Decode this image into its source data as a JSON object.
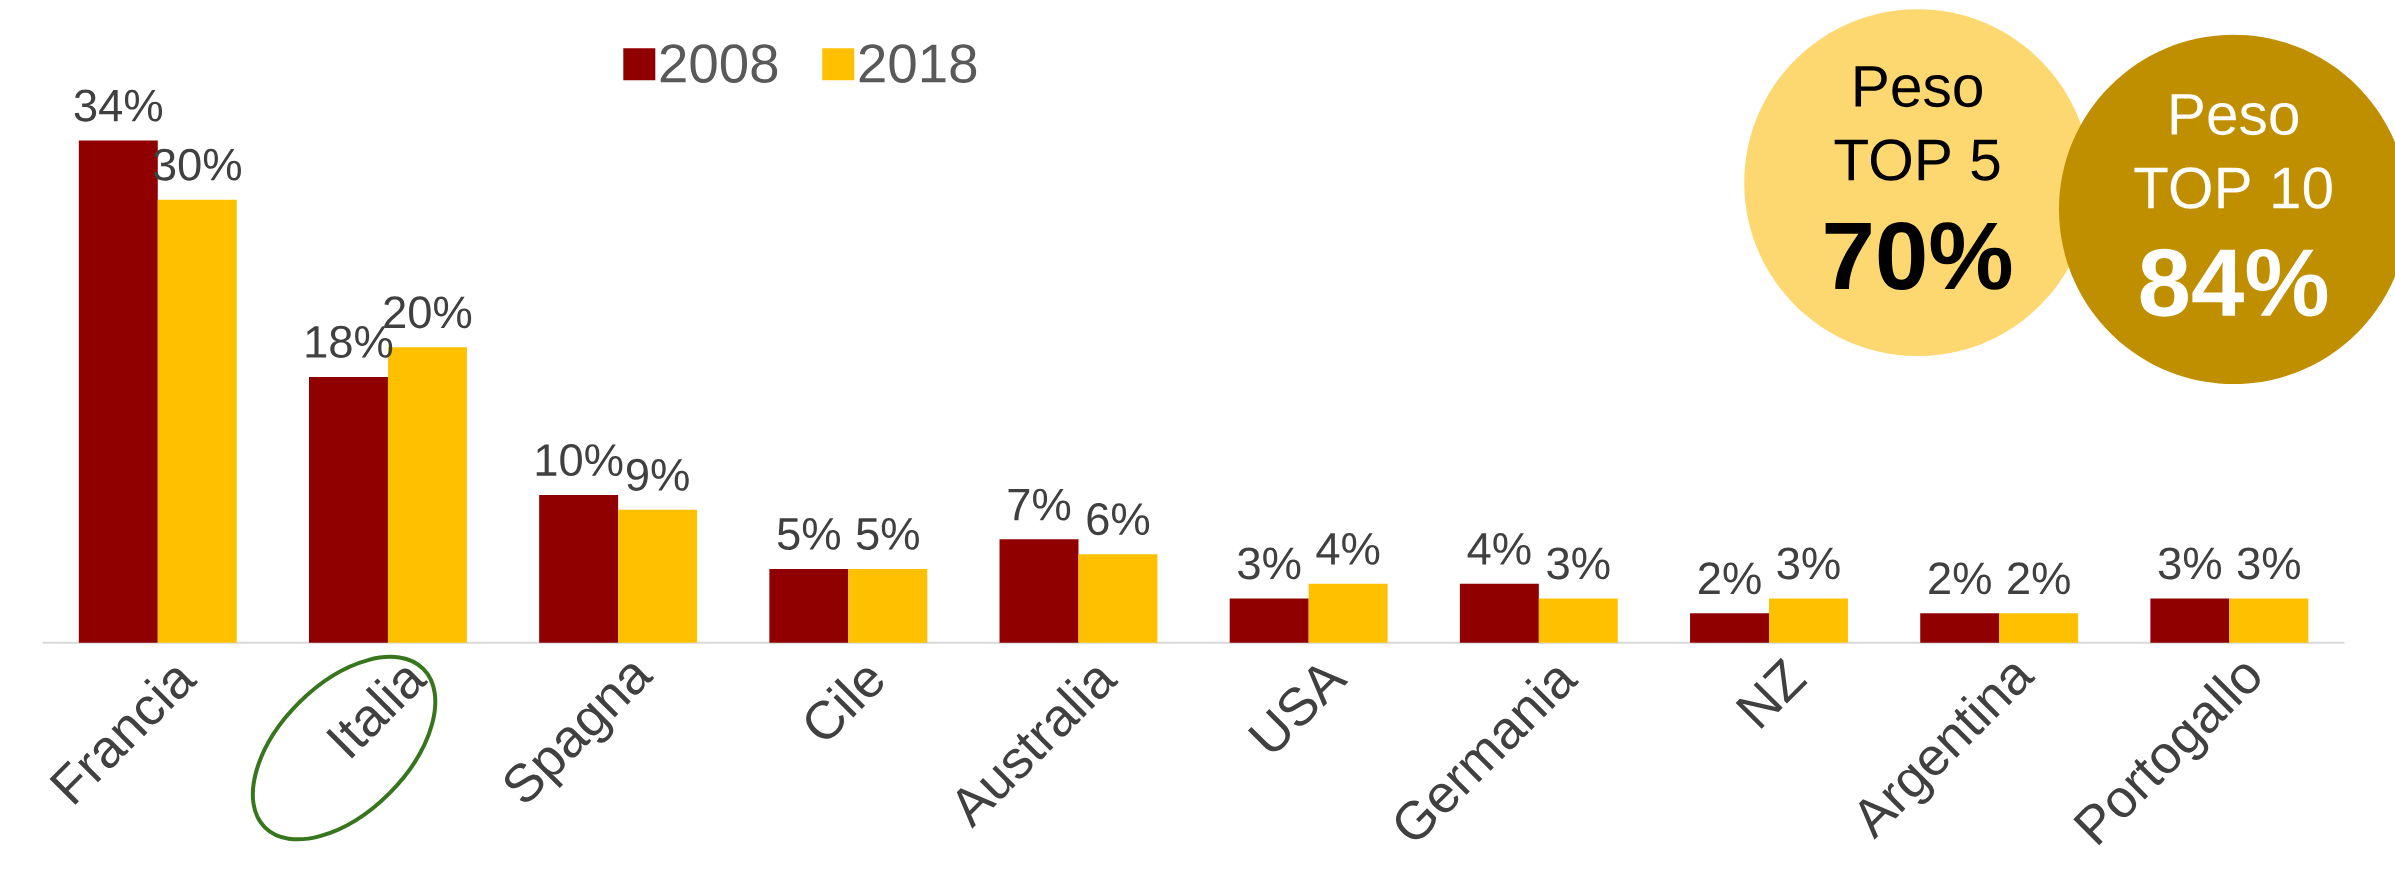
{
  "chart_data": {
    "type": "bar",
    "categories": [
      "Francia",
      "Italia",
      "Spagna",
      "Cile",
      "Australia",
      "USA",
      "Germania",
      "NZ",
      "Argentina",
      "Portogallo"
    ],
    "series": [
      {
        "name": "2008",
        "color": "#900000",
        "values": [
          34,
          18,
          10,
          5,
          7,
          3,
          4,
          2,
          2,
          3
        ],
        "value_labels": [
          "34%",
          "18%",
          "10%",
          "5%",
          "7%",
          "3%",
          "4%",
          "2%",
          "2%",
          "3%"
        ]
      },
      {
        "name": "2018",
        "color": "#ffc000",
        "values": [
          30,
          20,
          9,
          5,
          6,
          4,
          3,
          3,
          2,
          3
        ],
        "value_labels": [
          "30%",
          "20%",
          "9%",
          "5%",
          "6%",
          "4%",
          "3%",
          "3%",
          "2%",
          "3%"
        ]
      }
    ],
    "legend": "top",
    "tick_labels": "x",
    "annotations": [
      "Peso",
      "TOP 5",
      "70%",
      "Peso",
      "TOP 10",
      "84%"
    ]
  }
}
